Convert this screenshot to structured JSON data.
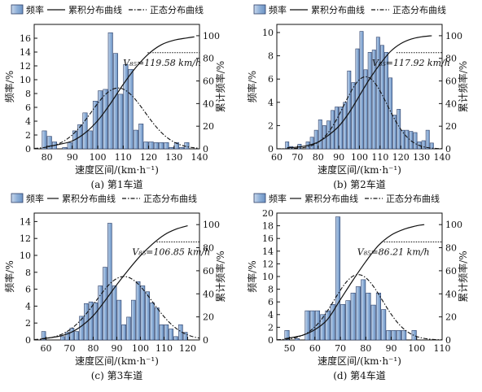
{
  "legend": {
    "freq": "频率",
    "cum": "累积分布曲线",
    "normal": "正态分布曲线"
  },
  "chart_data": [
    {
      "id": "a",
      "type": "bar",
      "caption": "(a) 第1车道",
      "xlabel": "速度区间/(km·h⁻¹)",
      "ylabel": "频率/%",
      "y2label": "累计频率/%",
      "xlim": [
        75,
        140
      ],
      "ylim": [
        0,
        18
      ],
      "y2lim": [
        0,
        110
      ],
      "xticks": [
        80,
        90,
        100,
        110,
        120,
        130,
        140
      ],
      "yticks": [
        0,
        2,
        4,
        6,
        8,
        10,
        12,
        14,
        16
      ],
      "y2ticks": [
        0,
        20,
        40,
        60,
        80,
        100
      ],
      "bar_width": 2,
      "bars": {
        "x": [
          79,
          81,
          83,
          87,
          89,
          91,
          93,
          95,
          97,
          99,
          101,
          103,
          105,
          107,
          109,
          111,
          113,
          115,
          117,
          119,
          121,
          123,
          125,
          127,
          129,
          131,
          133,
          135
        ],
        "y": [
          2.6,
          1.8,
          1.0,
          0.2,
          0.9,
          2.6,
          3.5,
          5.2,
          2.6,
          6.9,
          8.4,
          8.6,
          16.8,
          13.8,
          7.9,
          12.2,
          11.5,
          2.7,
          3.6,
          1.0,
          1.0,
          0.9,
          0.9,
          0.9,
          0.2,
          0.9,
          0.2,
          0.9
        ]
      },
      "cumulative": {
        "x": [
          80,
          85,
          90,
          95,
          100,
          105,
          110,
          115,
          120,
          125,
          130,
          135,
          138
        ],
        "y": [
          2,
          4,
          7,
          14,
          25,
          40,
          57,
          72,
          84,
          92,
          96,
          98,
          99
        ]
      },
      "normal": {
        "mean": 108,
        "sd": 10.5,
        "peak": 8.8
      },
      "v85": {
        "label": "V₈₅=119.58 km/h",
        "x": 119.58,
        "y2": 85
      }
    },
    {
      "id": "b",
      "type": "bar",
      "caption": "(b) 第2车道",
      "xlabel": "速度区间/(km·h⁻¹)",
      "ylabel": "频率/%",
      "y2label": "累计频率/%",
      "xlim": [
        60,
        140
      ],
      "ylim": [
        0,
        10.7
      ],
      "y2lim": [
        0,
        110
      ],
      "xticks": [
        60,
        70,
        80,
        90,
        100,
        110,
        120,
        130,
        140
      ],
      "yticks": [
        0,
        2,
        4,
        6,
        8,
        10
      ],
      "y2ticks": [
        0,
        20,
        40,
        60,
        80,
        100
      ],
      "bar_width": 2,
      "bars": {
        "x": [
          65,
          67,
          71,
          75,
          77,
          79,
          81,
          83,
          85,
          87,
          89,
          91,
          93,
          95,
          97,
          99,
          101,
          103,
          105,
          107,
          109,
          111,
          113,
          115,
          117,
          119,
          121,
          123,
          125,
          127,
          129,
          131,
          133,
          135
        ],
        "y": [
          0.6,
          0.2,
          0.4,
          0.6,
          1.0,
          1.6,
          2.5,
          2.0,
          2.4,
          3.3,
          3.6,
          3.6,
          4.0,
          6.7,
          5.7,
          8.6,
          10.1,
          6.8,
          8.3,
          8.5,
          9.6,
          8.9,
          8.3,
          6.1,
          2.9,
          3.4,
          1.6,
          1.6,
          1.5,
          1.4,
          0.6,
          0.7,
          1.6,
          0.5
        ]
      },
      "cumulative": {
        "x": [
          65,
          70,
          75,
          80,
          85,
          90,
          95,
          100,
          105,
          110,
          115,
          120,
          125,
          130,
          135
        ],
        "y": [
          1,
          1.5,
          3,
          6,
          12,
          20,
          32,
          47,
          62,
          75,
          86,
          93,
          97,
          99,
          100
        ]
      },
      "normal": {
        "mean": 103,
        "sd": 10.5,
        "peak": 6.2
      },
      "v85": {
        "label": "V₈₅=117.92 km/h",
        "x": 117.92,
        "y2": 85
      }
    },
    {
      "id": "c",
      "type": "bar",
      "caption": "(c) 第3车道",
      "xlabel": "速度区间/(km·h⁻¹)",
      "ylabel": "频率/%",
      "y2label": "累计频率/%",
      "xlim": [
        55,
        125
      ],
      "ylim": [
        0,
        15
      ],
      "y2lim": [
        0,
        110
      ],
      "xticks": [
        60,
        70,
        80,
        90,
        100,
        110,
        120
      ],
      "yticks": [
        0,
        2,
        4,
        6,
        8,
        10,
        12,
        14
      ],
      "y2ticks": [
        0,
        20,
        40,
        60,
        80,
        100
      ],
      "bar_width": 2,
      "bars": {
        "x": [
          59,
          67,
          69,
          71,
          73,
          75,
          77,
          79,
          81,
          83,
          85,
          87,
          89,
          91,
          93,
          95,
          97,
          99,
          101,
          103,
          105,
          107,
          109,
          111,
          113,
          115,
          117,
          119
        ],
        "y": [
          1.0,
          0.4,
          0.9,
          1.4,
          1.0,
          2.8,
          4.3,
          4.5,
          4.4,
          6.4,
          8.6,
          13.8,
          6.4,
          4.7,
          1.8,
          2.7,
          4.7,
          6.9,
          6.4,
          5.7,
          4.4,
          3.8,
          1.8,
          1.8,
          1.3,
          0.4,
          1.8,
          0.9
        ]
      },
      "cumulative": {
        "x": [
          58,
          65,
          70,
          75,
          80,
          85,
          90,
          95,
          100,
          105,
          110,
          115,
          120
        ],
        "y": [
          1,
          3,
          6,
          12,
          21,
          34,
          48,
          61,
          73,
          83,
          91,
          96,
          99
        ]
      },
      "normal": {
        "mean": 93,
        "sd": 12,
        "peak": 7.5
      },
      "v85": {
        "label": "V₈₅=106.85 km/h",
        "x": 106.85,
        "y2": 85
      }
    },
    {
      "id": "d",
      "type": "bar",
      "caption": "(d) 第4车道",
      "xlabel": "速度区间/(km·h⁻¹)",
      "ylabel": "频率/%",
      "y2label": "累计频率/%",
      "xlim": [
        45,
        110
      ],
      "ylim": [
        0,
        20
      ],
      "y2lim": [
        0,
        110
      ],
      "xticks": [
        50,
        60,
        70,
        80,
        90,
        100,
        110
      ],
      "yticks": [
        0,
        2,
        4,
        6,
        8,
        10,
        12,
        14,
        16,
        18,
        20
      ],
      "y2ticks": [
        0,
        20,
        40,
        60,
        80,
        100
      ],
      "bar_width": 2,
      "bars": {
        "x": [
          49,
          53,
          57,
          59,
          61,
          63,
          65,
          67,
          69,
          71,
          73,
          75,
          77,
          79,
          81,
          83,
          85,
          87,
          89,
          91,
          93,
          95,
          99
        ],
        "y": [
          1.5,
          0.2,
          4.6,
          4.6,
          4.6,
          4.0,
          4.6,
          5.6,
          19.4,
          5.6,
          6.2,
          7.4,
          8.4,
          9.5,
          7.4,
          5.5,
          7.4,
          4.8,
          1.5,
          1.5,
          1.5,
          1.5,
          1.5
        ]
      },
      "cumulative": {
        "x": [
          48,
          55,
          60,
          65,
          70,
          75,
          80,
          85,
          90,
          95,
          100,
          103
        ],
        "y": [
          1,
          4,
          9,
          18,
          35,
          52,
          68,
          82,
          91,
          96,
          99,
          100
        ]
      },
      "normal": {
        "mean": 77,
        "sd": 9.5,
        "peak": 10.3
      },
      "v85": {
        "label": "V₈₅=86.21 km/h",
        "x": 86.21,
        "y2": 85
      }
    }
  ]
}
